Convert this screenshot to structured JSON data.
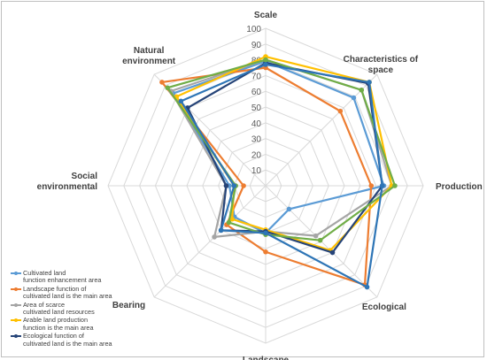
{
  "chart_data": {
    "type": "radar",
    "axes": [
      "Scale",
      "Characteristics of space",
      "Production",
      "Ecological",
      "Landscape",
      "Bearing",
      "Social environmental",
      "Natural environment"
    ],
    "r_ticks": [
      10,
      20,
      30,
      40,
      50,
      60,
      70,
      80,
      90,
      100
    ],
    "r_range": [
      0,
      100
    ],
    "grid": true,
    "series": [
      {
        "name": "Cultivated land function enhancement area",
        "color": "#5b9bd5",
        "values": [
          79,
          79,
          75,
          21,
          30,
          28,
          23,
          83
        ]
      },
      {
        "name": "Landscape function of cultivated land is the main area",
        "color": "#ed7d31",
        "values": [
          75,
          67,
          67,
          89,
          42,
          35,
          14,
          93
        ]
      },
      {
        "name": "Area of scarce cultivated land resources",
        "color": "#a5a5a5",
        "values": [
          80,
          86,
          80,
          45,
          29,
          46,
          25,
          85
        ]
      },
      {
        "name": "Arable land production function is the main area",
        "color": "#ffc000",
        "values": [
          82,
          93,
          80,
          58,
          28,
          30,
          20,
          80
        ]
      },
      {
        "name": "Ecological function of cultivated land is the main area",
        "color": "#264478",
        "values": [
          78,
          92,
          74,
          60,
          29,
          40,
          25,
          70
        ]
      },
      {
        "name": "",
        "color": "#70ad47",
        "values": [
          80,
          86,
          82,
          49,
          31,
          33,
          19,
          88
        ]
      },
      {
        "name": "",
        "color": "#2e75b6",
        "values": [
          77,
          93,
          74,
          91,
          30,
          40,
          20,
          76
        ]
      }
    ]
  },
  "legend": [
    {
      "text": "Cultivated land\nfunction enhancement area",
      "color": "#5b9bd5"
    },
    {
      "text": "Landscape function of\ncultivated land is the main area",
      "color": "#ed7d31"
    },
    {
      "text": "Area of scarce\ncultivated land resources",
      "color": "#a5a5a5"
    },
    {
      "text": "Arable land production\nfunction is the main area",
      "color": "#ffc000"
    },
    {
      "text": "Ecological function of\ncultivated land is the main area",
      "color": "#264478"
    }
  ]
}
